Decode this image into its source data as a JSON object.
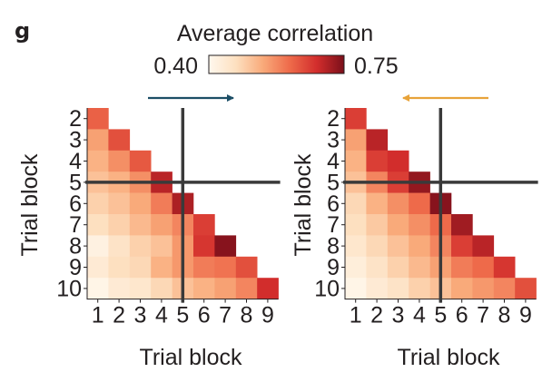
{
  "panel_label": "g",
  "colorbar": {
    "title": "Average correlation",
    "min_label": "0.40",
    "max_label": "0.75",
    "stops": [
      "#fff8ee",
      "#fde0c0",
      "#f9aa7a",
      "#ee6a4a",
      "#d22d2c",
      "#7a0f1a"
    ]
  },
  "colors": {
    "forward_arrow": "#1c4e66",
    "backward_arrow": "#e8a33a",
    "divider": "#3a3a3a"
  },
  "chart_data": [
    {
      "type": "heatmap",
      "direction": "forward",
      "arrow_direction": "right",
      "xlabel": "Trial block",
      "ylabel": "Trial block",
      "x_ticks": [
        "1",
        "2",
        "3",
        "4",
        "5",
        "6",
        "7",
        "8",
        "9"
      ],
      "y_ticks": [
        "2",
        "3",
        "4",
        "5",
        "6",
        "7",
        "8",
        "9",
        "10"
      ],
      "value_range": [
        0.4,
        0.75
      ],
      "divider_after_block": 5,
      "rows": [
        [
          0.62
        ],
        [
          0.55,
          0.64
        ],
        [
          0.53,
          0.57,
          0.63
        ],
        [
          0.51,
          0.53,
          0.57,
          0.7
        ],
        [
          0.49,
          0.51,
          0.54,
          0.59,
          0.71
        ],
        [
          0.47,
          0.49,
          0.52,
          0.55,
          0.58,
          0.66
        ],
        [
          0.42,
          0.46,
          0.49,
          0.51,
          0.56,
          0.67,
          0.74
        ],
        [
          0.44,
          0.47,
          0.48,
          0.53,
          0.56,
          0.59,
          0.6,
          0.64
        ],
        [
          0.41,
          0.44,
          0.45,
          0.48,
          0.51,
          0.53,
          0.55,
          0.58,
          0.68
        ]
      ]
    },
    {
      "type": "heatmap",
      "direction": "backward",
      "arrow_direction": "left",
      "xlabel": "Trial block",
      "ylabel": "Trial block",
      "x_ticks": [
        "1",
        "2",
        "3",
        "4",
        "5",
        "6",
        "7",
        "8",
        "9"
      ],
      "y_ticks": [
        "2",
        "3",
        "4",
        "5",
        "6",
        "7",
        "8",
        "9",
        "10"
      ],
      "value_range": [
        0.4,
        0.75
      ],
      "divider_after_block": 5,
      "rows": [
        [
          0.66
        ],
        [
          0.55,
          0.7
        ],
        [
          0.53,
          0.66,
          0.68
        ],
        [
          0.51,
          0.58,
          0.66,
          0.73
        ],
        [
          0.48,
          0.53,
          0.57,
          0.61,
          0.74
        ],
        [
          0.47,
          0.5,
          0.54,
          0.57,
          0.61,
          0.72
        ],
        [
          0.45,
          0.48,
          0.51,
          0.54,
          0.58,
          0.66,
          0.7
        ],
        [
          0.43,
          0.46,
          0.49,
          0.52,
          0.55,
          0.59,
          0.61,
          0.67
        ],
        [
          0.41,
          0.44,
          0.46,
          0.49,
          0.51,
          0.54,
          0.56,
          0.58,
          0.64
        ]
      ]
    }
  ]
}
